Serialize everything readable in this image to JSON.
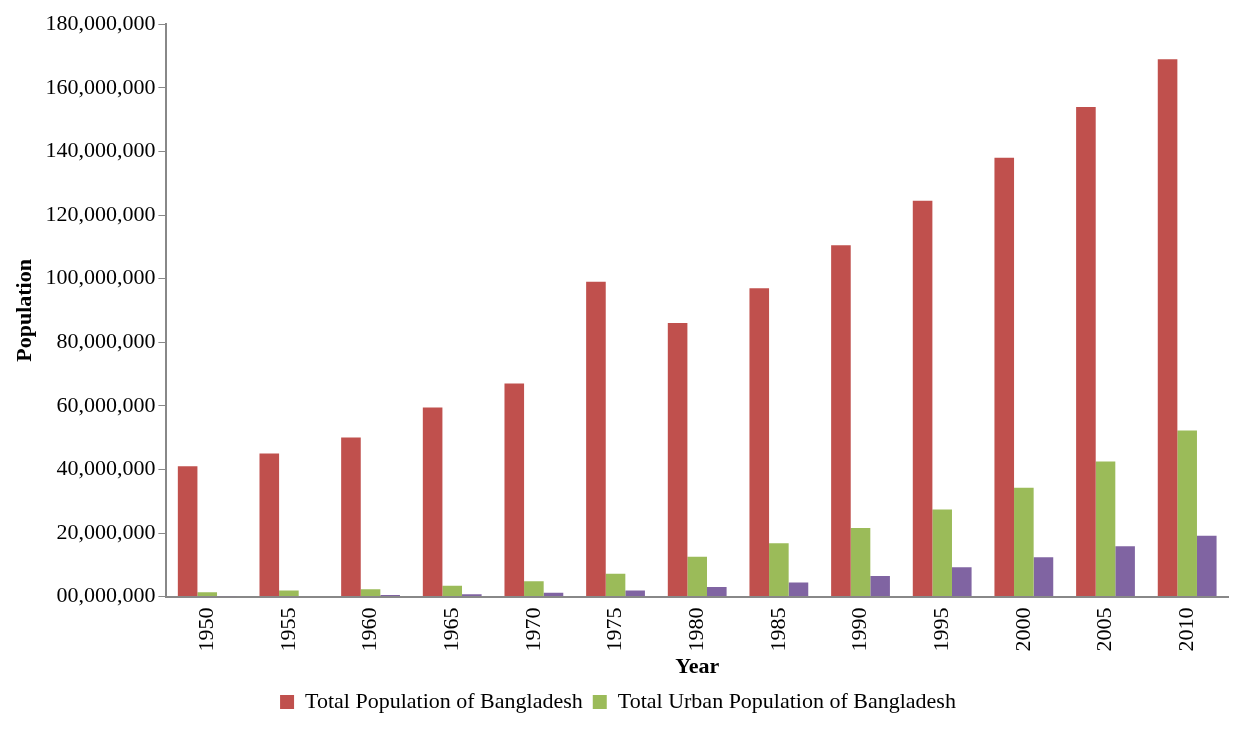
{
  "chart_data": {
    "type": "bar",
    "xlabel": "Year",
    "ylabel": "Population",
    "categories": [
      "1950",
      "1955",
      "1960",
      "1965",
      "1970",
      "1975",
      "1980",
      "1985",
      "1990",
      "1995",
      "2000",
      "2005",
      "2010"
    ],
    "series": [
      {
        "name": "Total Population of Bangladesh",
        "color": "#c0504d",
        "values": [
          41000000,
          45000000,
          50000000,
          59500000,
          67000000,
          99000000,
          86000000,
          97000000,
          110500000,
          124500000,
          138000000,
          154000000,
          169000000
        ]
      },
      {
        "name": "Total Urban Population of Bangladesh",
        "color": "#9bbb59",
        "values": [
          1400000,
          1900000,
          2300000,
          3400000,
          4800000,
          7200000,
          12500000,
          16800000,
          21600000,
          27400000,
          34200000,
          42500000,
          52200000
        ]
      },
      {
        "color": "#8064a2",
        "values": [
          100000,
          200000,
          500000,
          700000,
          1200000,
          1900000,
          3000000,
          4400000,
          6500000,
          9200000,
          12400000,
          15800000,
          19100000
        ]
      }
    ],
    "ylim": [
      0,
      180000000
    ],
    "yticks": [
      {
        "value": 0,
        "label": "00,000,000"
      },
      {
        "value": 20000000,
        "label": "20,000,000"
      },
      {
        "value": 40000000,
        "label": "40,000,000"
      },
      {
        "value": 60000000,
        "label": "60,000,000"
      },
      {
        "value": 80000000,
        "label": "80,000,000"
      },
      {
        "value": 100000000,
        "label": "100,000,000"
      },
      {
        "value": 120000000,
        "label": "120,000,000"
      },
      {
        "value": 140000000,
        "label": "140,000,000"
      },
      {
        "value": 160000000,
        "label": "160,000,000"
      },
      {
        "value": 180000000,
        "label": "180,000,000"
      }
    ],
    "grid": false,
    "legend": "bottom"
  }
}
